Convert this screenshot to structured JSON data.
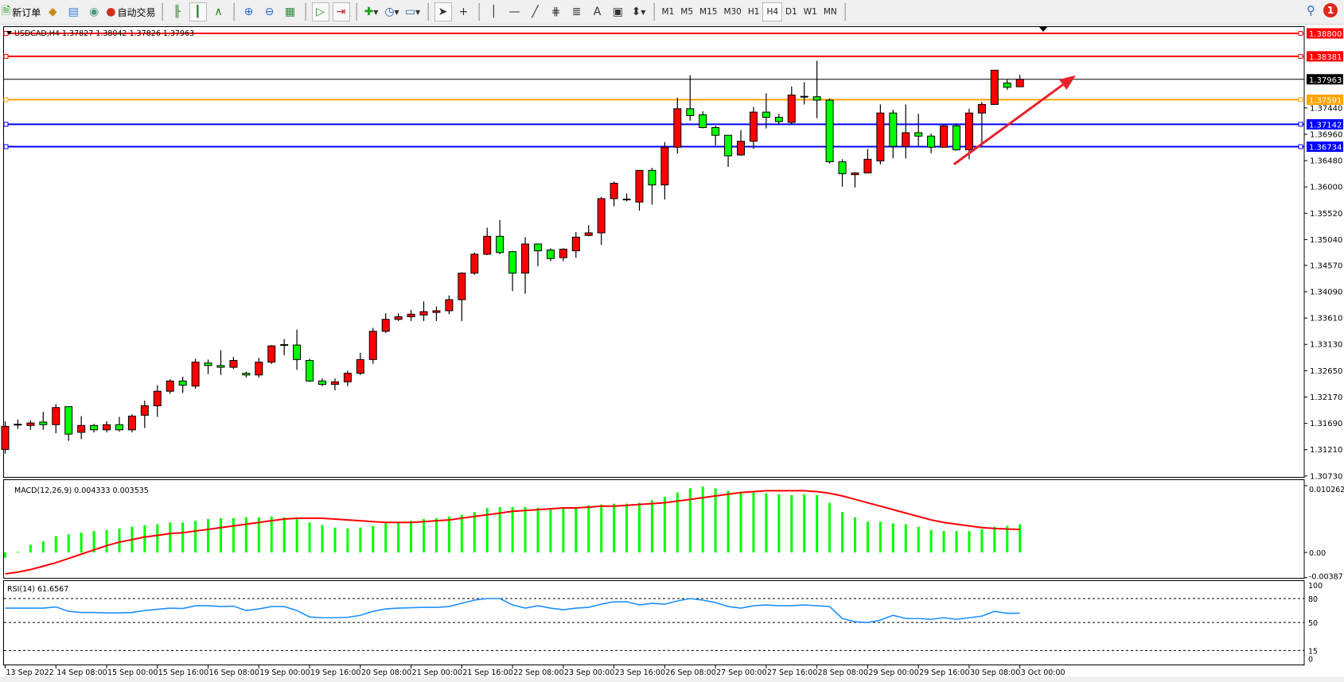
{
  "toolbar": {
    "new_order_label": "新订单",
    "auto_trading_label": "自动交易",
    "icons": [
      "new-order-icon",
      "metaeditor-icon",
      "navigator-icon",
      "signals-icon",
      "auto-trading-icon",
      "bar-chart-icon",
      "candlestick-icon",
      "line-chart-icon",
      "zoom-in-icon",
      "zoom-out-icon",
      "tile-windows-icon",
      "auto-scroll-icon",
      "chart-shift-icon",
      "add-indicator-icon",
      "periods-clock-icon",
      "templates-icon",
      "cursor-icon",
      "crosshair-icon",
      "vertical-line-icon",
      "horizontal-line-icon",
      "trendline-icon",
      "fibo-icon",
      "fibo-fan-icon",
      "text-icon",
      "text-label-icon",
      "arrows-icon"
    ],
    "text_tool": "A",
    "periods": [
      "M1",
      "M5",
      "M15",
      "M30",
      "H1",
      "H4",
      "D1",
      "W1",
      "MN"
    ],
    "active_period": "H4",
    "notification_count": "1"
  },
  "chart_header": "USDCAD,H4  1.37827 1.38042 1.37826 1.37963",
  "colors": {
    "bull": "#ff0000",
    "bear": "#00ff00",
    "macd_hist": "#00ff00",
    "signal": "#ff0000",
    "rsi": "#1e90ff",
    "line_red": "#ff0000",
    "line_orange": "#ffa500",
    "line_blue": "#0000ff",
    "bid": "#000000",
    "arrow": "#e8202a"
  },
  "chart_data": [
    {
      "type": "candlestick",
      "symbol": "USDCAD",
      "timeframe": "H4",
      "ylim": [
        1.3073,
        1.3888
      ],
      "yticks": [
        "1.37440",
        "1.36960",
        "1.36480",
        "1.36000",
        "1.35520",
        "1.35040",
        "1.34570",
        "1.34090",
        "1.33610",
        "1.33130",
        "1.32650",
        "1.32170",
        "1.31690",
        "1.31210",
        "1.30730"
      ],
      "xticks": [
        {
          "bar": 1,
          "label": "13 Sep 2022"
        },
        {
          "bar": 5,
          "label": "14 Sep 08:00"
        },
        {
          "bar": 9,
          "label": "15 Sep 00:00"
        },
        {
          "bar": 13,
          "label": "15 Sep 16:00"
        },
        {
          "bar": 17,
          "label": "16 Sep 08:00"
        },
        {
          "bar": 21,
          "label": "19 Sep 00:00"
        },
        {
          "bar": 25,
          "label": "19 Sep 16:00"
        },
        {
          "bar": 29,
          "label": "20 Sep 08:00"
        },
        {
          "bar": 33,
          "label": "21 Sep 00:00"
        },
        {
          "bar": 37,
          "label": "21 Sep 16:00"
        },
        {
          "bar": 41,
          "label": "22 Sep 08:00"
        },
        {
          "bar": 45,
          "label": "23 Sep 00:00"
        },
        {
          "bar": 49,
          "label": "23 Sep 16:00"
        },
        {
          "bar": 53,
          "label": "26 Sep 08:00"
        },
        {
          "bar": 57,
          "label": "27 Sep 00:00"
        },
        {
          "bar": 61,
          "label": "27 Sep 16:00"
        },
        {
          "bar": 65,
          "label": "28 Sep 08:00"
        },
        {
          "bar": 69,
          "label": "29 Sep 00:00"
        },
        {
          "bar": 73,
          "label": "29 Sep 16:00"
        },
        {
          "bar": 77,
          "label": "30 Sep 08:00"
        },
        {
          "bar": 81,
          "label": "3 Oct 00:00"
        }
      ],
      "ohlc": [
        [
          1.31214,
          1.31729,
          1.31136,
          1.31635
        ],
        [
          1.31666,
          1.3176,
          1.31588,
          1.31666
        ],
        [
          1.31651,
          1.31744,
          1.31572,
          1.31697
        ],
        [
          1.31713,
          1.319,
          1.31572,
          1.31666
        ],
        [
          1.31666,
          1.32041,
          1.3151,
          1.31978
        ],
        [
          1.31994,
          1.31994,
          1.3137,
          1.31494
        ],
        [
          1.31526,
          1.31822,
          1.31401,
          1.31651
        ],
        [
          1.31651,
          1.31682,
          1.31526,
          1.31572
        ],
        [
          1.31572,
          1.31729,
          1.31526,
          1.31666
        ],
        [
          1.31666,
          1.31807,
          1.31541,
          1.31572
        ],
        [
          1.31572,
          1.31854,
          1.31526,
          1.31822
        ],
        [
          1.31838,
          1.32103,
          1.31604,
          1.3201
        ],
        [
          1.3201,
          1.32385,
          1.31807,
          1.32275
        ],
        [
          1.32275,
          1.32493,
          1.32228,
          1.32462
        ],
        [
          1.32462,
          1.3254,
          1.32244,
          1.32385
        ],
        [
          1.32369,
          1.32868,
          1.32322,
          1.32806
        ],
        [
          1.3279,
          1.32853,
          1.32588,
          1.32744
        ],
        [
          1.32744,
          1.33024,
          1.32572,
          1.32712
        ],
        [
          1.32712,
          1.329,
          1.32681,
          1.32837
        ],
        [
          1.32603,
          1.32634,
          1.32525,
          1.32572
        ],
        [
          1.32572,
          1.32884,
          1.32525,
          1.32806
        ],
        [
          1.32806,
          1.33118,
          1.32775,
          1.33102
        ],
        [
          1.33118,
          1.33227,
          1.32931,
          1.33118
        ],
        [
          1.33118,
          1.33399,
          1.32665,
          1.32853
        ],
        [
          1.32837,
          1.32868,
          1.32447,
          1.32462
        ],
        [
          1.32462,
          1.32509,
          1.32369,
          1.324
        ],
        [
          1.324,
          1.32509,
          1.32291,
          1.32447
        ],
        [
          1.32447,
          1.3265,
          1.32369,
          1.32603
        ],
        [
          1.32603,
          1.32977,
          1.32572,
          1.32853
        ],
        [
          1.32853,
          1.3343,
          1.32775,
          1.33368
        ],
        [
          1.33368,
          1.33696,
          1.33337,
          1.33586
        ],
        [
          1.33586,
          1.33696,
          1.33555,
          1.33633
        ],
        [
          1.33633,
          1.33758,
          1.33555,
          1.3368
        ],
        [
          1.33665,
          1.33914,
          1.33555,
          1.33727
        ],
        [
          1.33712,
          1.33821,
          1.33555,
          1.33743
        ],
        [
          1.33743,
          1.34023,
          1.3368,
          1.33945
        ],
        [
          1.33945,
          1.34445,
          1.33555,
          1.34429
        ],
        [
          1.34429,
          1.34804,
          1.34398,
          1.34773
        ],
        [
          1.34773,
          1.35257,
          1.34757,
          1.351
        ],
        [
          1.351,
          1.35397,
          1.34773,
          1.34804
        ],
        [
          1.3482,
          1.34835,
          1.34101,
          1.34429
        ],
        [
          1.34429,
          1.35085,
          1.34055,
          1.3496
        ],
        [
          1.3496,
          1.3496,
          1.34554,
          1.34835
        ],
        [
          1.34851,
          1.34882,
          1.34648,
          1.34695
        ],
        [
          1.3471,
          1.34882,
          1.34648,
          1.34866
        ],
        [
          1.34835,
          1.35179,
          1.3471,
          1.35085
        ],
        [
          1.35116,
          1.35303,
          1.351,
          1.35163
        ],
        [
          1.35163,
          1.35818,
          1.34945,
          1.35787
        ],
        [
          1.35787,
          1.36099,
          1.35647,
          1.36068
        ],
        [
          1.35772,
          1.35881,
          1.3574,
          1.35772
        ],
        [
          1.35725,
          1.36302,
          1.35569,
          1.36302
        ],
        [
          1.36302,
          1.36349,
          1.35678,
          1.36037
        ],
        [
          1.36037,
          1.36818,
          1.35772,
          1.36724
        ],
        [
          1.36724,
          1.37629,
          1.36609,
          1.37426
        ],
        [
          1.37426,
          1.38035,
          1.37208,
          1.37301
        ],
        [
          1.37317,
          1.37379,
          1.37067,
          1.37083
        ],
        [
          1.37083,
          1.37114,
          1.36755,
          1.36942
        ],
        [
          1.36942,
          1.36942,
          1.36365,
          1.36568
        ],
        [
          1.36583,
          1.37036,
          1.36568,
          1.36833
        ],
        [
          1.36833,
          1.37458,
          1.36693,
          1.37364
        ],
        [
          1.37364,
          1.37707,
          1.37067,
          1.3727
        ],
        [
          1.3727,
          1.37333,
          1.37145,
          1.37192
        ],
        [
          1.37177,
          1.37832,
          1.37145,
          1.37676
        ],
        [
          1.37645,
          1.3791,
          1.37504,
          1.37645
        ],
        [
          1.37645,
          1.383,
          1.37255,
          1.37583
        ],
        [
          1.37583,
          1.37614,
          1.36427,
          1.36459
        ],
        [
          1.36459,
          1.36505,
          1.36006,
          1.3624
        ],
        [
          1.36224,
          1.36271,
          1.3599,
          1.36255
        ],
        [
          1.36255,
          1.36693,
          1.36255,
          1.36505
        ],
        [
          1.36474,
          1.37504,
          1.36412,
          1.37348
        ],
        [
          1.37348,
          1.37411,
          1.36521,
          1.3674
        ],
        [
          1.3674,
          1.37504,
          1.36521,
          1.36989
        ],
        [
          1.36989,
          1.37333,
          1.3674,
          1.36927
        ],
        [
          1.36927,
          1.36973,
          1.36615,
          1.36724
        ],
        [
          1.36724,
          1.37145,
          1.36724,
          1.37114
        ],
        [
          1.37114,
          1.37161,
          1.36661,
          1.36677
        ],
        [
          1.36677,
          1.37426,
          1.36505,
          1.37348
        ],
        [
          1.37348,
          1.37551,
          1.36755,
          1.37504
        ],
        [
          1.37504,
          1.38129,
          1.37504,
          1.38129
        ],
        [
          1.37895,
          1.37957,
          1.3777,
          1.37817
        ],
        [
          1.37827,
          1.38042,
          1.37826,
          1.37963
        ]
      ],
      "hlines": [
        {
          "price": 1.388,
          "label": "1.38800",
          "color": "#ff0000"
        },
        {
          "price": 1.38381,
          "label": "1.38381",
          "color": "#ff0000"
        },
        {
          "price": 1.37963,
          "label": "1.37963",
          "color": "#000000",
          "bid": true
        },
        {
          "price": 1.37591,
          "label": "1.37591",
          "color": "#ffa500"
        },
        {
          "price": 1.37142,
          "label": "1.37142",
          "color": "#0000ff"
        },
        {
          "price": 1.36734,
          "label": "1.36734",
          "color": "#0000ff"
        }
      ],
      "arrow": {
        "from": {
          "bar": 75.8,
          "price": 1.36412
        },
        "to": {
          "bar": 85.4,
          "price": 1.38035
        },
        "color": "#e8202a"
      }
    },
    {
      "type": "bar+line",
      "title": "MACD(12,26,9) 0.004333 0.003535",
      "ylim": [
        -0.003871,
        0.010262
      ],
      "yticks": [
        "0.010262",
        "0.00",
        "-0.003871"
      ],
      "histogram": [
        -0.0008,
        0.0001,
        0.00118,
        0.00171,
        0.0025,
        0.00276,
        0.00303,
        0.00329,
        0.00342,
        0.00368,
        0.00395,
        0.00421,
        0.00434,
        0.00461,
        0.00461,
        0.00487,
        0.00513,
        0.00526,
        0.00526,
        0.0054,
        0.0054,
        0.00553,
        0.0054,
        0.0054,
        0.00461,
        0.00421,
        0.00382,
        0.00368,
        0.00382,
        0.00408,
        0.00447,
        0.00474,
        0.00487,
        0.00513,
        0.00526,
        0.00553,
        0.00579,
        0.00619,
        0.00684,
        0.00697,
        0.00697,
        0.00697,
        0.00684,
        0.00671,
        0.00684,
        0.00697,
        0.00724,
        0.00737,
        0.0075,
        0.0075,
        0.00763,
        0.00803,
        0.00855,
        0.00921,
        0.00987,
        0.01013,
        0.00987,
        0.00948,
        0.00921,
        0.00921,
        0.00908,
        0.00895,
        0.00882,
        0.00895,
        0.00882,
        0.00763,
        0.00619,
        0.0054,
        0.00474,
        0.00474,
        0.00447,
        0.00434,
        0.00395,
        0.00342,
        0.00329,
        0.00329,
        0.00329,
        0.00355,
        0.00395,
        0.00408,
        0.004333
      ],
      "signal": [
        -0.00329,
        -0.00303,
        -0.00263,
        -0.00211,
        -0.00158,
        -0.00092,
        -0.00026,
        0.00039,
        0.00105,
        0.00158,
        0.00197,
        0.00237,
        0.00263,
        0.0029,
        0.00303,
        0.00329,
        0.00355,
        0.00382,
        0.00408,
        0.00434,
        0.00461,
        0.00487,
        0.00513,
        0.00526,
        0.00526,
        0.00526,
        0.00513,
        0.005,
        0.00487,
        0.00474,
        0.00461,
        0.00461,
        0.00461,
        0.00474,
        0.00487,
        0.005,
        0.00526,
        0.00553,
        0.00579,
        0.00605,
        0.00632,
        0.00645,
        0.00658,
        0.00671,
        0.00684,
        0.00684,
        0.00697,
        0.00711,
        0.00711,
        0.00724,
        0.00737,
        0.0075,
        0.00763,
        0.0079,
        0.00816,
        0.00842,
        0.00869,
        0.00895,
        0.00921,
        0.00934,
        0.00948,
        0.00948,
        0.00948,
        0.00948,
        0.00934,
        0.00908,
        0.00869,
        0.00816,
        0.00763,
        0.00711,
        0.00658,
        0.00605,
        0.00553,
        0.005,
        0.00461,
        0.00434,
        0.00408,
        0.00382,
        0.00368,
        0.0036,
        0.003535
      ]
    },
    {
      "type": "line",
      "title": "RSI(14) 61.6567",
      "ylim": [
        0,
        100
      ],
      "levels": [
        80,
        50,
        15
      ],
      "yticks": [
        "100",
        "80",
        "50",
        "15",
        "0"
      ],
      "values": [
        68,
        68,
        68,
        68,
        69.5,
        64,
        62.5,
        62.5,
        62,
        62,
        62.5,
        65,
        66.5,
        68,
        67.5,
        71,
        71,
        70,
        70.5,
        65,
        67,
        70,
        70,
        65,
        57,
        56,
        56,
        56.5,
        59,
        64,
        67,
        68,
        68.5,
        69,
        69,
        70,
        74,
        78,
        80,
        80,
        72,
        68,
        71,
        68,
        66,
        68,
        69,
        73,
        76,
        76,
        72,
        74,
        73,
        77,
        80,
        78,
        75,
        70,
        68,
        71,
        72,
        71,
        71,
        72,
        71,
        70,
        55,
        51,
        50,
        53,
        59,
        55,
        55,
        54,
        56,
        54,
        56,
        58,
        64,
        61.5,
        61.6567
      ]
    }
  ]
}
